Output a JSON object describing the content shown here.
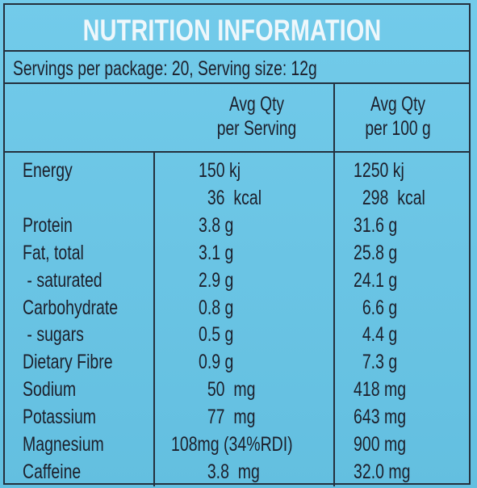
{
  "title": "NUTRITION INFORMATION",
  "servings_line": "Servings per package: 20, Serving size: 12g",
  "columns": {
    "serving_header_line1": "Avg Qty",
    "serving_header_line2": "per Serving",
    "per100_header_line1": "Avg Qty",
    "per100_header_line2": "per 100 g"
  },
  "rows": [
    {
      "name": "Energy",
      "serving": "150 kj",
      "per100": "1250 kj"
    },
    {
      "name": "",
      "serving": "  36  kcal",
      "per100": "  298  kcal"
    },
    {
      "name": "Protein",
      "serving": "3.8 g",
      "per100": "31.6 g"
    },
    {
      "name": "Fat, total",
      "serving": "3.1 g",
      "per100": "25.8 g"
    },
    {
      "name": " - saturated",
      "serving": "2.9 g",
      "per100": "24.1 g"
    },
    {
      "name": "Carbohydrate",
      "serving": "0.8 g",
      "per100": "  6.6 g"
    },
    {
      "name": " - sugars",
      "serving": "0.5 g",
      "per100": "  4.4 g"
    },
    {
      "name": "Dietary Fibre",
      "serving": "0.9 g",
      "per100": "  7.3 g"
    },
    {
      "name": "Sodium",
      "serving": "  50  mg",
      "per100": "418 mg"
    },
    {
      "name": "Potassium",
      "serving": "  77  mg",
      "per100": "643 mg"
    },
    {
      "name": "Magnesium",
      "serving": "108mg (34%RDI)",
      "per100": "900 mg"
    },
    {
      "name": "Caffeine",
      "serving": "  3.8  mg",
      "per100": "32.0 mg"
    }
  ]
}
